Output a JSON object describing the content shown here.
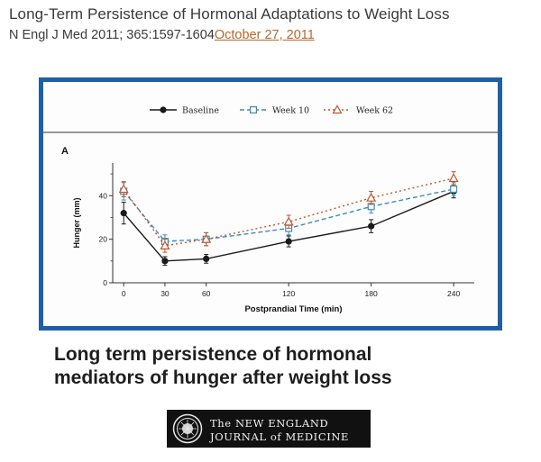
{
  "slide": {
    "title": "Long-Term Persistence of Hormonal Adaptations to Weight Loss",
    "citation": "N Engl J Med 2011; 365:1597-1604",
    "citation_date": "October 27, 2011",
    "caption_line1": "Long term persistence of hormonal",
    "caption_line2": "mediators of hunger after weight loss"
  },
  "logo": {
    "line1": "The NEW ENGLAND",
    "line2": "JOURNAL of MEDICINE"
  },
  "colors": {
    "frame": "#1f5fa8",
    "baseline": "#1a1a1a",
    "week10": "#3a8fb0",
    "week62": "#c0562e",
    "link": "#b8672a"
  },
  "chart_data": {
    "type": "line",
    "panel_label": "A",
    "xlabel": "Postprandial Time (min)",
    "ylabel": "Hunger (mm)",
    "x": [
      0,
      30,
      60,
      120,
      180,
      240
    ],
    "x_ticks": [
      "0",
      "30",
      "60",
      "120",
      "180",
      "240"
    ],
    "y_ticks": [
      "0",
      "20",
      "40"
    ],
    "xlim": [
      -8,
      255
    ],
    "ylim": [
      0,
      55
    ],
    "legend_position": "top",
    "series": [
      {
        "name": "Baseline",
        "marker": "circle",
        "line": "solid",
        "values": [
          32,
          10,
          11,
          19,
          26,
          42
        ],
        "err": [
          5,
          2,
          2,
          2.5,
          3,
          3
        ]
      },
      {
        "name": "Week 10",
        "marker": "square",
        "line": "dashed",
        "values": [
          42,
          19,
          20,
          25,
          35,
          43
        ],
        "err": [
          4,
          3,
          3,
          3,
          3,
          3
        ]
      },
      {
        "name": "Week 62",
        "marker": "triangle",
        "line": "dotted",
        "values": [
          43,
          17,
          20,
          28,
          39,
          48
        ],
        "err": [
          3.5,
          3,
          3,
          3,
          3,
          3
        ]
      }
    ]
  }
}
